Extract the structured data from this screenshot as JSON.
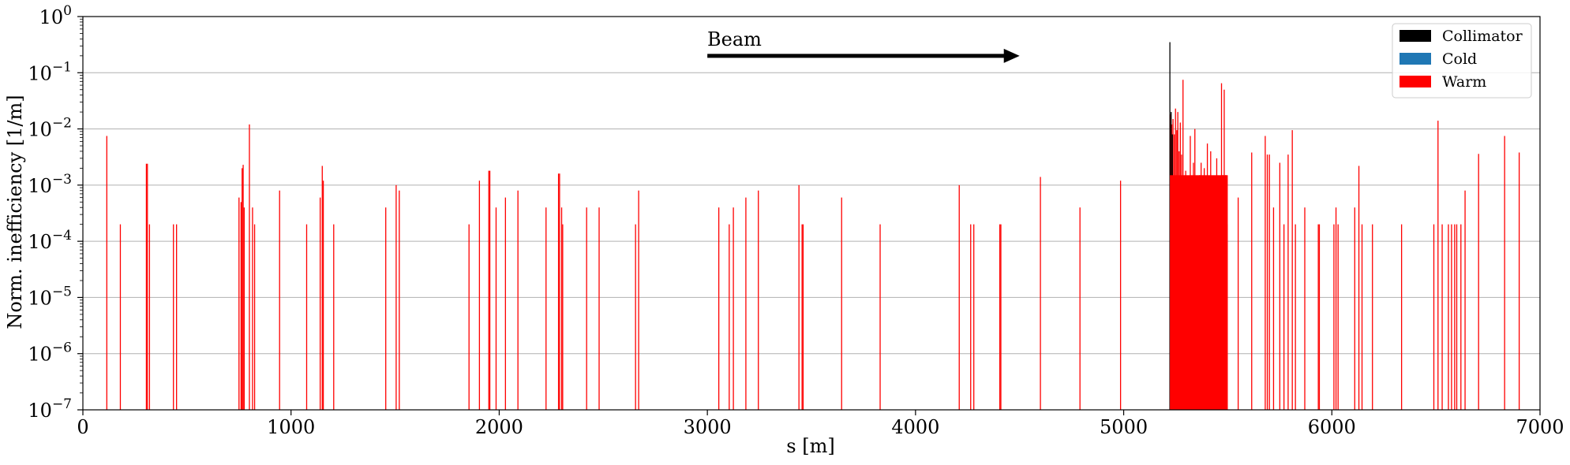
{
  "chart_data": {
    "type": "bar",
    "xlabel": "s [m]",
    "ylabel": "Norm. inefficiency [1/m]",
    "xlim": [
      0,
      7000
    ],
    "ylim": [
      1e-07,
      1
    ],
    "yscale": "log",
    "grid": "y-major",
    "legend_position": "top-right",
    "x_ticks": [
      "0",
      "1000",
      "2000",
      "3000",
      "4000",
      "5000",
      "6000",
      "7000"
    ],
    "y_ticks": [
      {
        "base": "10",
        "exp": "0"
      },
      {
        "base": "10",
        "exp": "−1"
      },
      {
        "base": "10",
        "exp": "−2"
      },
      {
        "base": "10",
        "exp": "−3"
      },
      {
        "base": "10",
        "exp": "−4"
      },
      {
        "base": "10",
        "exp": "−5"
      },
      {
        "base": "10",
        "exp": "−6"
      },
      {
        "base": "10",
        "exp": "−7"
      }
    ],
    "annotation": {
      "text": "Beam",
      "arrow_from_x": 3000,
      "arrow_to_x": 4500,
      "arrow_y": 0.2
    },
    "series": [
      {
        "name": "Collimator",
        "color": "#000000",
        "points": [
          [
            5222,
            0.35
          ],
          [
            5228,
            0.02
          ],
          [
            5234,
            0.008
          ]
        ]
      },
      {
        "name": "Cold",
        "color": "#1f77b4",
        "points": []
      },
      {
        "name": "Warm",
        "color": "#ff0000",
        "points": [
          [
            115,
            0.0075
          ],
          [
            180,
            0.0002
          ],
          [
            305,
            0.0024
          ],
          [
            310,
            0.0024
          ],
          [
            320,
            0.0002
          ],
          [
            435,
            0.0002
          ],
          [
            450,
            0.0002
          ],
          [
            750,
            0.0006
          ],
          [
            760,
            0.0005
          ],
          [
            765,
            0.002
          ],
          [
            770,
            0.0023
          ],
          [
            775,
            0.0004
          ],
          [
            800,
            0.012
          ],
          [
            815,
            0.0004
          ],
          [
            825,
            0.0002
          ],
          [
            945,
            0.0008
          ],
          [
            1075,
            0.0002
          ],
          [
            1140,
            0.0006
          ],
          [
            1150,
            0.0022
          ],
          [
            1155,
            0.0012
          ],
          [
            1205,
            0.0002
          ],
          [
            1455,
            0.0004
          ],
          [
            1505,
            0.001
          ],
          [
            1520,
            0.0008
          ],
          [
            1855,
            0.0002
          ],
          [
            1905,
            0.0012
          ],
          [
            1950,
            0.0018
          ],
          [
            1955,
            0.0018
          ],
          [
            1985,
            0.0004
          ],
          [
            2030,
            0.0006
          ],
          [
            2090,
            0.0008
          ],
          [
            2225,
            0.0004
          ],
          [
            2285,
            0.0016
          ],
          [
            2290,
            0.0016
          ],
          [
            2300,
            0.0004
          ],
          [
            2305,
            0.0002
          ],
          [
            2420,
            0.0004
          ],
          [
            2480,
            0.0004
          ],
          [
            2655,
            0.0002
          ],
          [
            2670,
            0.0008
          ],
          [
            3055,
            0.0004
          ],
          [
            3105,
            0.0002
          ],
          [
            3125,
            0.0004
          ],
          [
            3185,
            0.0006
          ],
          [
            3245,
            0.0008
          ],
          [
            3440,
            0.001
          ],
          [
            3455,
            0.0002
          ],
          [
            3460,
            0.0002
          ],
          [
            3645,
            0.0006
          ],
          [
            3830,
            0.0002
          ],
          [
            4210,
            0.001
          ],
          [
            4265,
            0.0002
          ],
          [
            4280,
            0.0002
          ],
          [
            4405,
            0.0002
          ],
          [
            4410,
            0.0002
          ],
          [
            4600,
            0.0014
          ],
          [
            4790,
            0.0004
          ],
          [
            4985,
            0.0012
          ],
          [
            5225,
            0.018
          ],
          [
            5231,
            0.012
          ],
          [
            5237,
            0.015
          ],
          [
            5243,
            0.008
          ],
          [
            5249,
            0.023
          ],
          [
            5255,
            0.0095
          ],
          [
            5260,
            0.02
          ],
          [
            5266,
            0.004
          ],
          [
            5272,
            0.013
          ],
          [
            5278,
            0.0035
          ],
          [
            5285,
            0.075
          ],
          [
            5290,
            0.0008
          ],
          [
            5298,
            0.0018
          ],
          [
            5305,
            0.0003
          ],
          [
            5312,
            0.0007
          ],
          [
            5320,
            0.0075
          ],
          [
            5327,
            0.0004
          ],
          [
            5335,
            0.0025
          ],
          [
            5342,
            0.01
          ],
          [
            5350,
            0.0006
          ],
          [
            5357,
            0.0002
          ],
          [
            5365,
            0.0015
          ],
          [
            5372,
            0.0025
          ],
          [
            5380,
            0.0001
          ],
          [
            5387,
            0.002
          ],
          [
            5395,
            0.0008
          ],
          [
            5402,
            0.0055
          ],
          [
            5410,
            0.0004
          ],
          [
            5418,
            0.004
          ],
          [
            5425,
            0.0008
          ],
          [
            5432,
            0.001
          ],
          [
            5440,
            0.0006
          ],
          [
            5447,
            0.003
          ],
          [
            5455,
            0.0005
          ],
          [
            5462,
            0.0002
          ],
          [
            5470,
            0.065
          ],
          [
            5475,
            0.0015
          ],
          [
            5483,
            0.05
          ],
          [
            5490,
            0.0015
          ],
          [
            5497,
            0.0002
          ],
          [
            5550,
            0.0006
          ],
          [
            5615,
            0.0038
          ],
          [
            5680,
            0.0075
          ],
          [
            5690,
            0.0035
          ],
          [
            5700,
            0.0035
          ],
          [
            5720,
            0.0004
          ],
          [
            5750,
            0.0025
          ],
          [
            5770,
            0.0002
          ],
          [
            5790,
            0.0035
          ],
          [
            5810,
            0.0095
          ],
          [
            5825,
            0.0002
          ],
          [
            5870,
            0.0004
          ],
          [
            5935,
            0.0002
          ],
          [
            5940,
            0.0002
          ],
          [
            6010,
            0.0002
          ],
          [
            6020,
            0.0004
          ],
          [
            6030,
            0.0002
          ],
          [
            6110,
            0.0004
          ],
          [
            6130,
            0.0022
          ],
          [
            6145,
            0.0002
          ],
          [
            6195,
            0.0002
          ],
          [
            6335,
            0.0002
          ],
          [
            6490,
            0.0002
          ],
          [
            6510,
            0.014
          ],
          [
            6530,
            0.0002
          ],
          [
            6560,
            0.0002
          ],
          [
            6575,
            0.0002
          ],
          [
            6590,
            0.0002
          ],
          [
            6600,
            0.0002
          ],
          [
            6620,
            0.0002
          ],
          [
            6640,
            0.0008
          ],
          [
            6705,
            0.0036
          ],
          [
            6830,
            0.0075
          ],
          [
            6900,
            0.0038
          ]
        ]
      }
    ]
  }
}
